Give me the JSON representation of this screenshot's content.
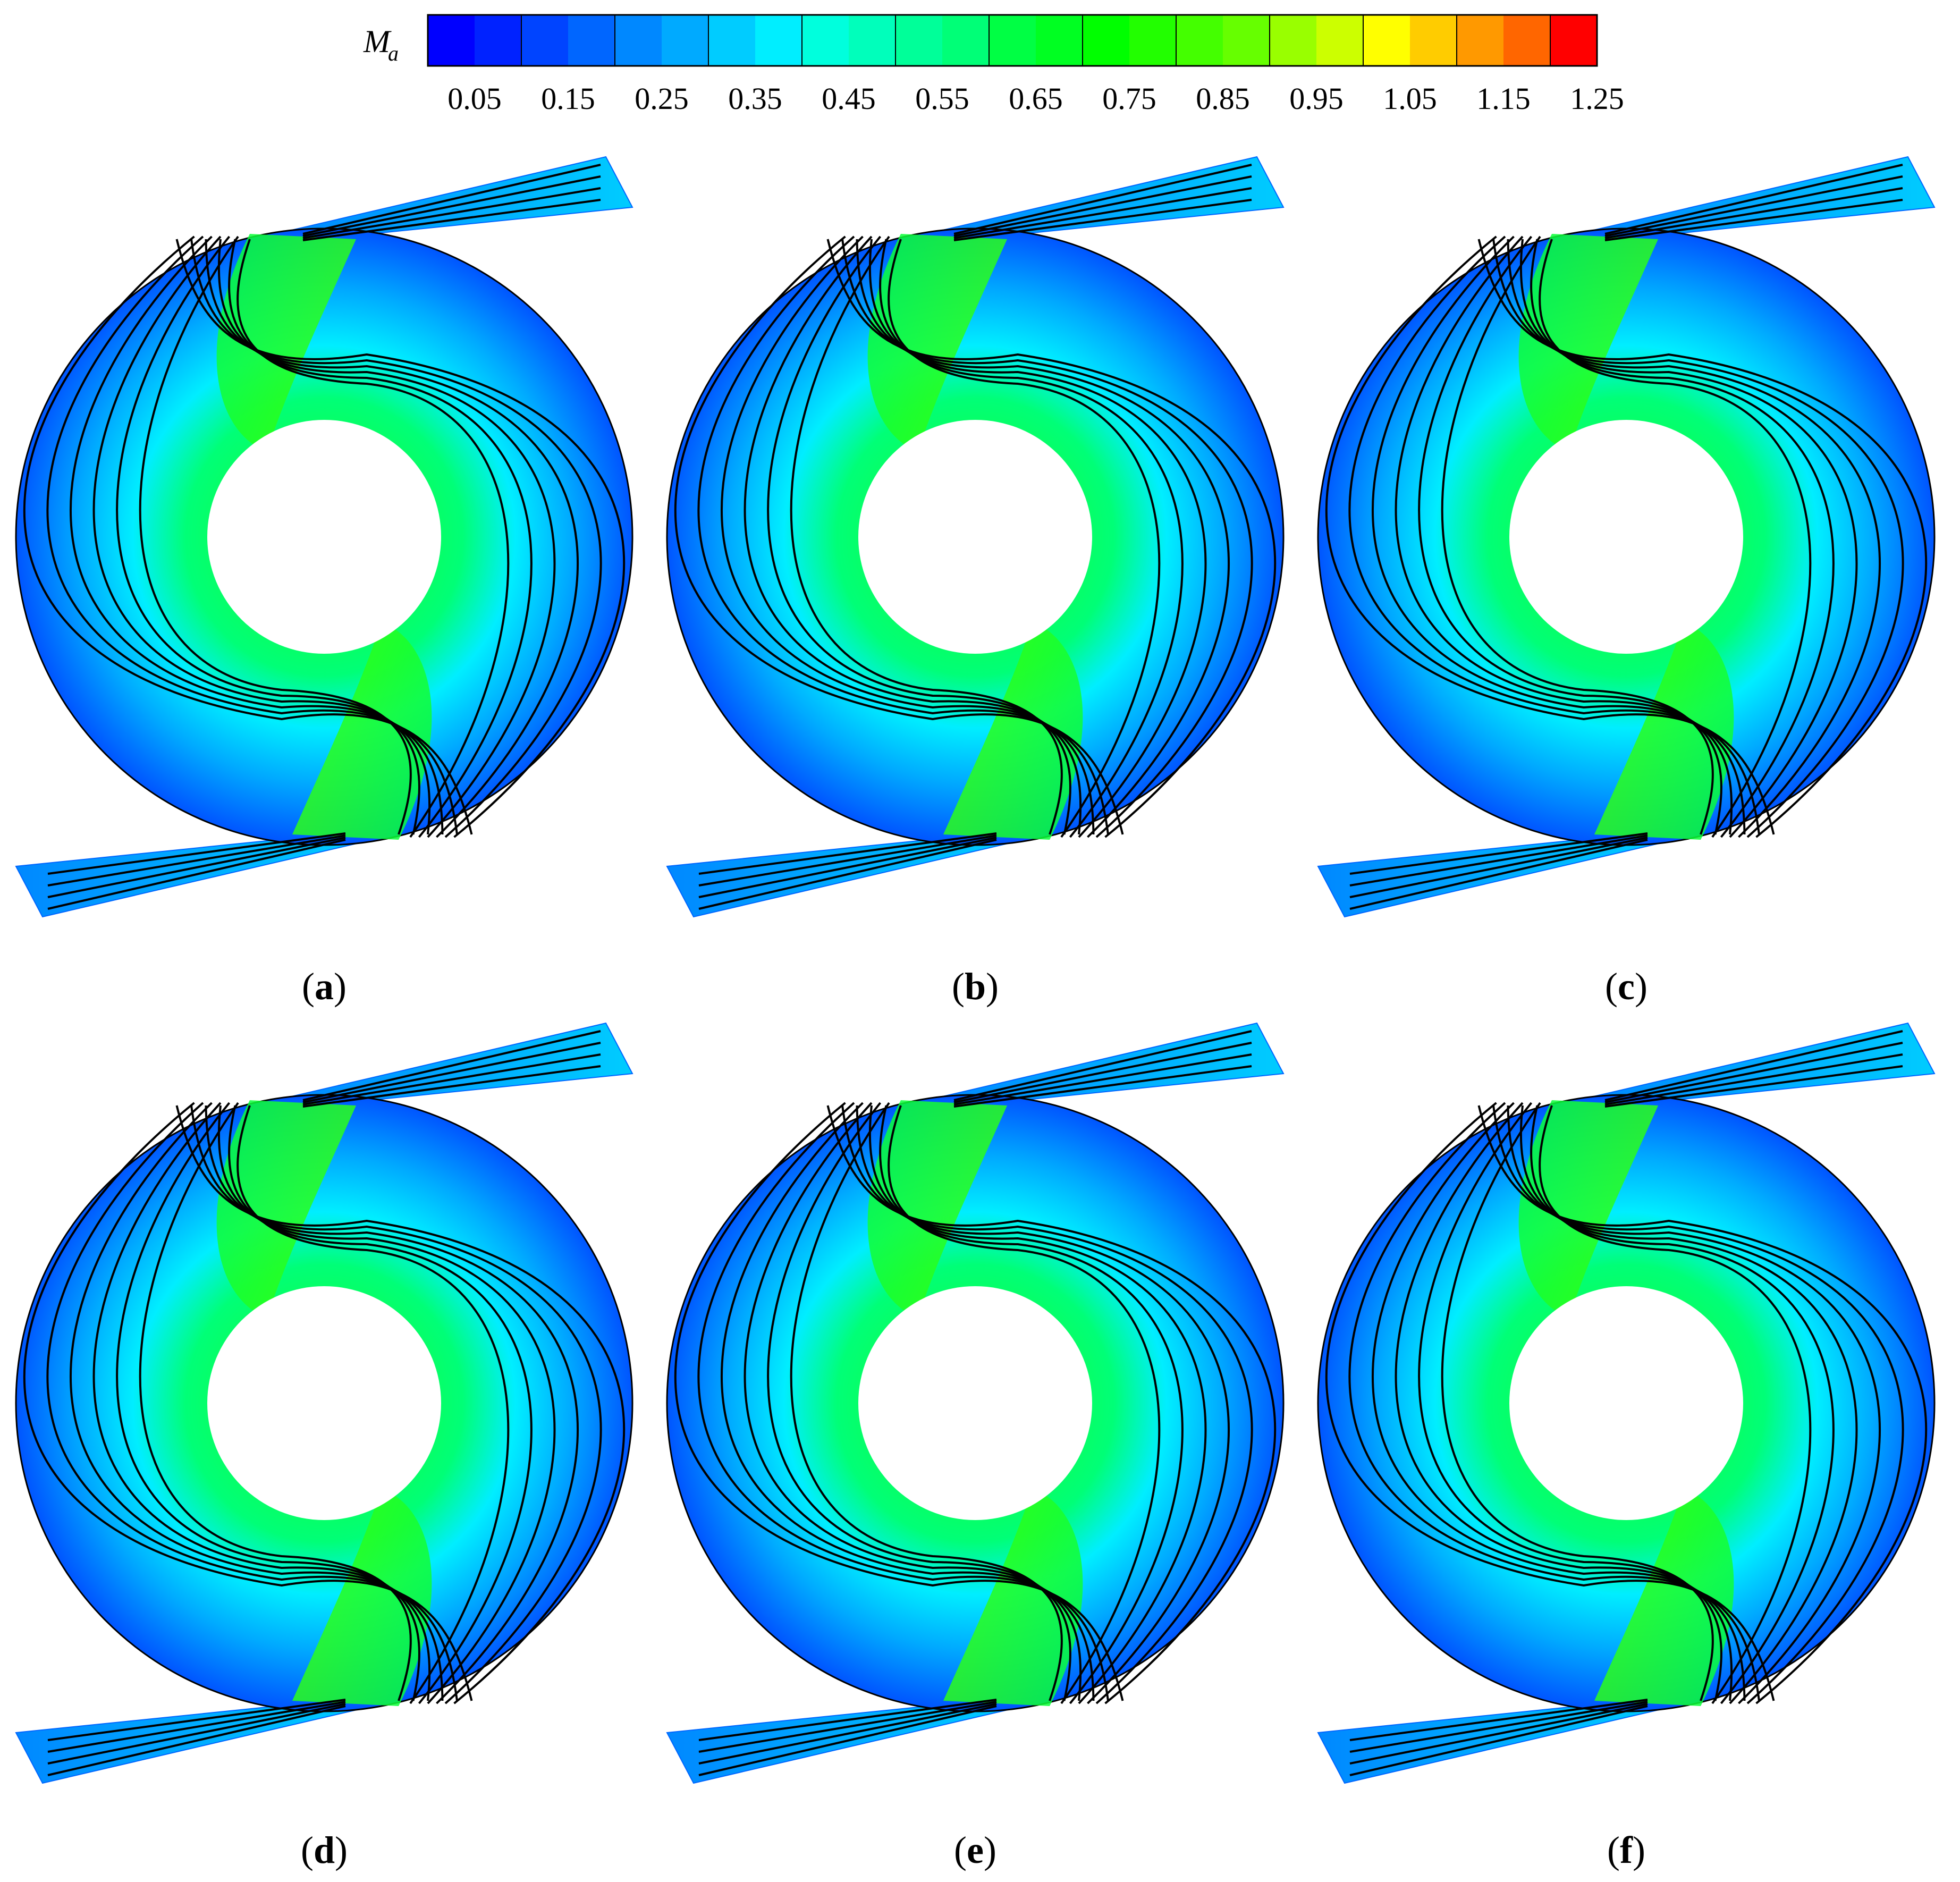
{
  "legend": {
    "title_main": "M",
    "title_sub": "a",
    "ticks": [
      "0.05",
      "0.15",
      "0.25",
      "0.35",
      "0.45",
      "0.55",
      "0.65",
      "0.75",
      "0.85",
      "0.95",
      "1.05",
      "1.15",
      "1.25"
    ],
    "min": 0.0,
    "max": 1.25,
    "band_count": 25,
    "colors": [
      "#0000ff",
      "#0022ff",
      "#0044ff",
      "#0066ff",
      "#0088ff",
      "#00aaff",
      "#00ccff",
      "#00eeff",
      "#00ffdd",
      "#00ffbb",
      "#00ff99",
      "#00ff77",
      "#00ff44",
      "#00ff22",
      "#00ff00",
      "#22ff00",
      "#44ff00",
      "#66ff00",
      "#99ff00",
      "#ccff00",
      "#ffff00",
      "#ffcc00",
      "#ff9900",
      "#ff6600",
      "#ff0000"
    ]
  },
  "panels": [
    {
      "label": "a"
    },
    {
      "label": "b"
    },
    {
      "label": "c"
    },
    {
      "label": "d"
    },
    {
      "label": "e"
    },
    {
      "label": "f"
    }
  ]
}
